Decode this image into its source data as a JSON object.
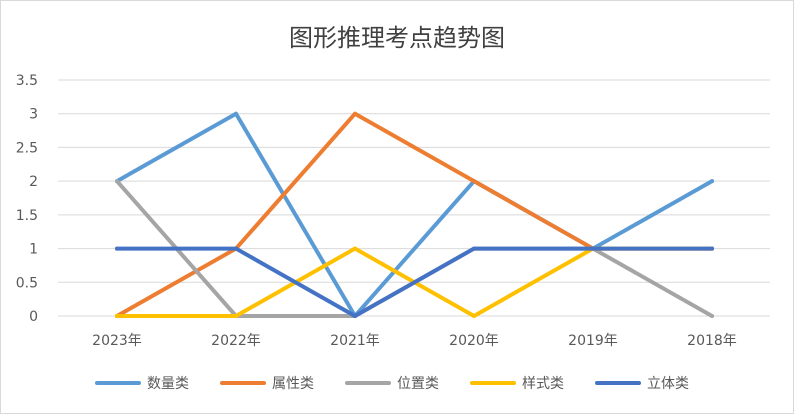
{
  "chart_data": {
    "type": "line",
    "title": "图形推理考点趋势图",
    "xlabel": "",
    "ylabel": "",
    "categories": [
      "2023年",
      "2022年",
      "2021年",
      "2020年",
      "2019年",
      "2018年"
    ],
    "ylim": [
      0,
      3.5
    ],
    "yticks": [
      "0",
      "0.5",
      "1",
      "1.5",
      "2",
      "2.5",
      "3",
      "3.5"
    ],
    "grid": true,
    "legend_position": "bottom",
    "series": [
      {
        "name": "数量类",
        "color": "#5B9BD5",
        "values": [
          2,
          3,
          0,
          2,
          1,
          2
        ]
      },
      {
        "name": "属性类",
        "color": "#ED7D31",
        "values": [
          0,
          1,
          3,
          2,
          1,
          1
        ]
      },
      {
        "name": "位置类",
        "color": "#A5A5A5",
        "values": [
          2,
          0,
          0,
          1,
          1,
          0
        ]
      },
      {
        "name": "样式类",
        "color": "#FFC000",
        "values": [
          0,
          0,
          1,
          0,
          1,
          1
        ]
      },
      {
        "name": "立体类",
        "color": "#4472C4",
        "values": [
          1,
          1,
          0,
          1,
          1,
          1
        ]
      }
    ]
  }
}
